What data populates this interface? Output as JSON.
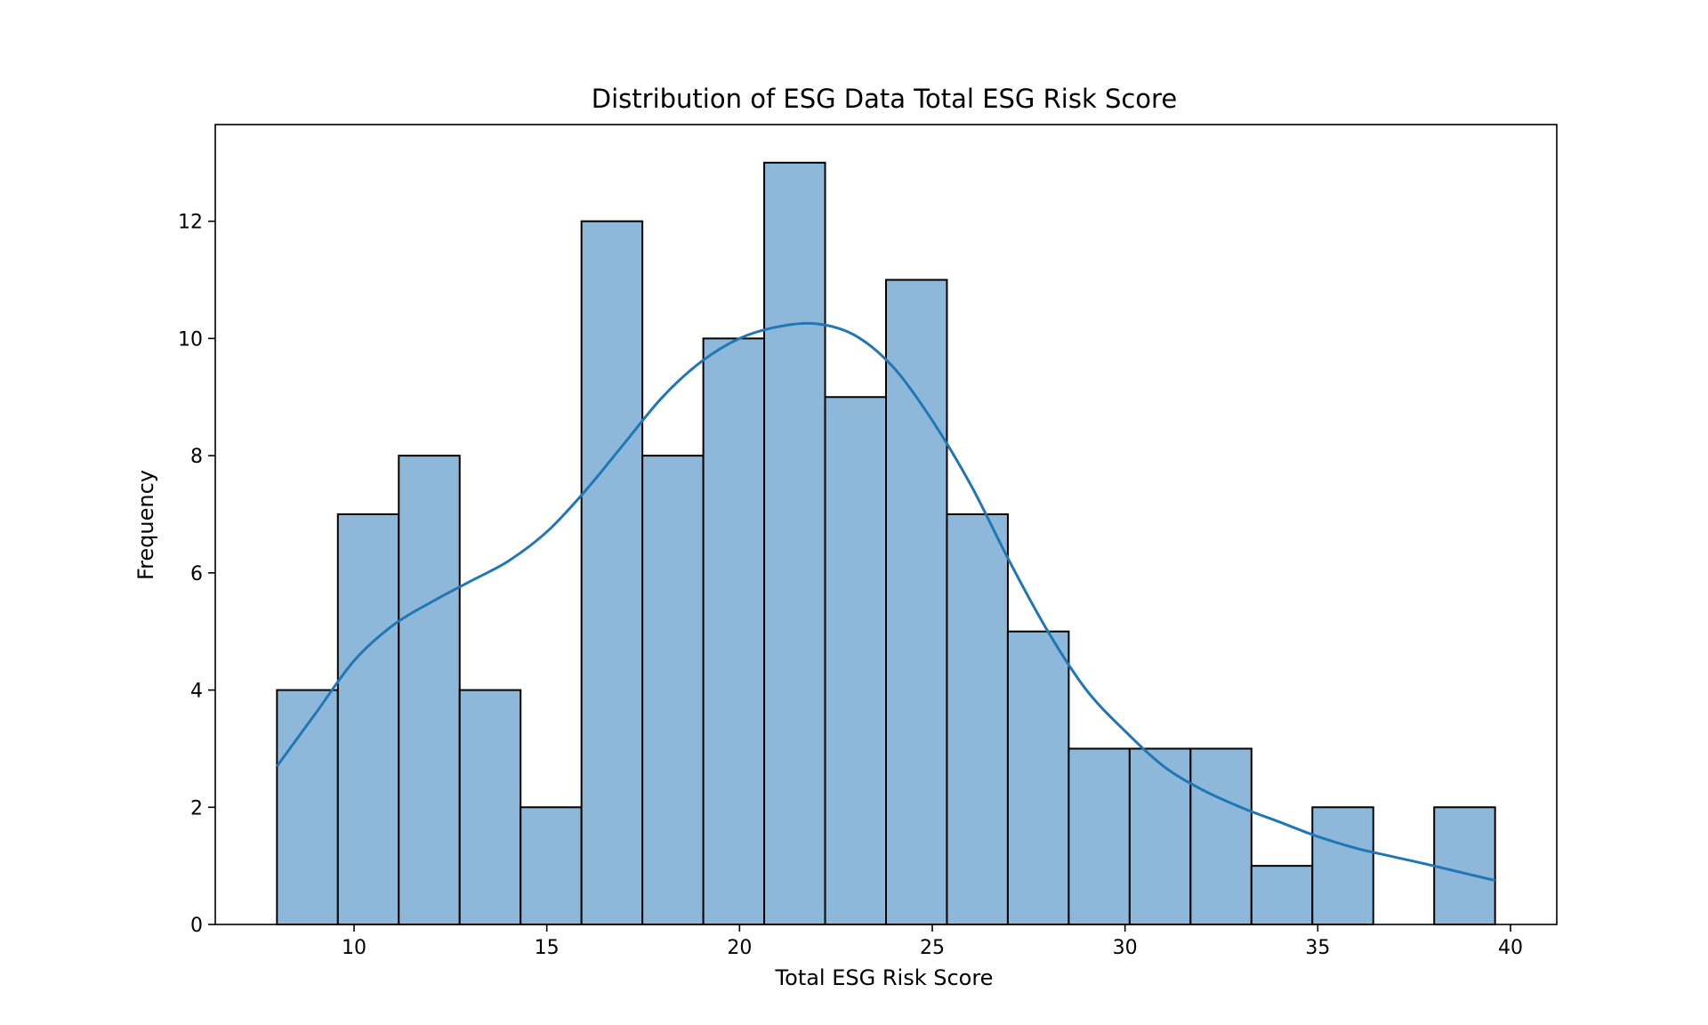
{
  "chart_data": {
    "type": "bar",
    "title": "Distribution of ESG Data Total ESG Risk Score",
    "xlabel": "Total ESG Risk Score",
    "ylabel": "Frequency",
    "xlim": [
      6.4,
      41.2
    ],
    "ylim": [
      0,
      13.65
    ],
    "xticks": [
      10,
      15,
      20,
      25,
      30,
      35,
      40
    ],
    "yticks": [
      0,
      2,
      4,
      6,
      8,
      10,
      12
    ],
    "bin_edges": [
      8.0,
      9.58,
      11.16,
      12.74,
      14.32,
      15.9,
      17.48,
      19.06,
      20.64,
      22.22,
      23.8,
      25.38,
      26.96,
      28.54,
      30.12,
      31.7,
      33.28,
      34.86,
      36.44,
      38.02,
      39.6
    ],
    "counts": [
      4,
      7,
      8,
      4,
      2,
      12,
      8,
      10,
      13,
      9,
      11,
      7,
      5,
      3,
      3,
      3,
      1,
      2,
      0,
      2
    ],
    "kde": {
      "x": [
        8.0,
        9.0,
        10.0,
        11.0,
        12.0,
        13.0,
        14.0,
        15.0,
        16.0,
        17.0,
        18.0,
        19.0,
        20.0,
        21.0,
        22.0,
        23.0,
        24.0,
        25.0,
        26.0,
        27.0,
        28.0,
        29.0,
        30.0,
        31.0,
        32.0,
        33.0,
        34.0,
        35.0,
        36.0,
        37.0,
        38.0,
        39.6
      ],
      "y": [
        2.7,
        3.6,
        4.5,
        5.1,
        5.5,
        5.85,
        6.2,
        6.7,
        7.4,
        8.2,
        9.0,
        9.6,
        10.0,
        10.2,
        10.25,
        10.05,
        9.5,
        8.6,
        7.5,
        6.2,
        5.0,
        4.0,
        3.3,
        2.7,
        2.3,
        2.0,
        1.75,
        1.5,
        1.3,
        1.15,
        1.0,
        0.75
      ]
    },
    "bar_color": "#8db8da",
    "edge_color": "#000000",
    "line_color": "#2177b4",
    "grid": false,
    "legend": "none"
  }
}
